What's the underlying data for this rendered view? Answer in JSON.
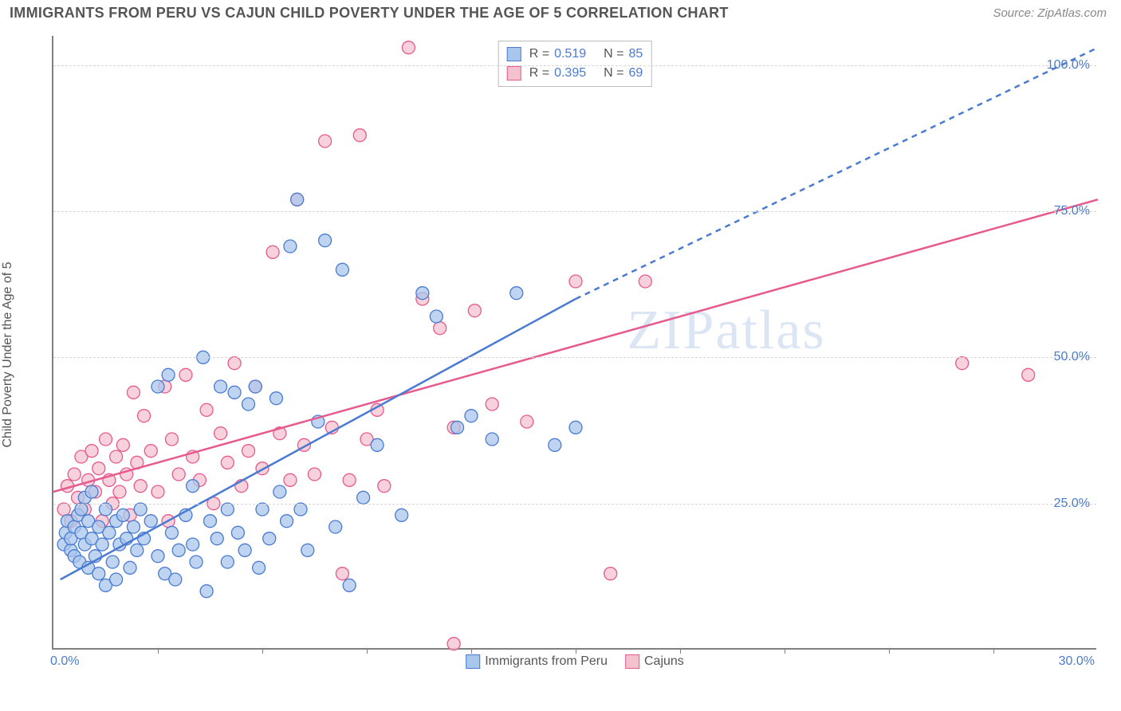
{
  "header": {
    "title": "IMMIGRANTS FROM PERU VS CAJUN CHILD POVERTY UNDER THE AGE OF 5 CORRELATION CHART",
    "source": "Source: ZipAtlas.com"
  },
  "chart": {
    "type": "scatter",
    "ylabel": "Child Poverty Under the Age of 5",
    "watermark": "ZIPatlas",
    "xlim": [
      0,
      30
    ],
    "ylim": [
      0,
      105
    ],
    "y_ticks": [
      25,
      50,
      75,
      100
    ],
    "y_tick_labels": [
      "25.0%",
      "50.0%",
      "75.0%",
      "100.0%"
    ],
    "x_minor_ticks": [
      3,
      6,
      9,
      12,
      15,
      18,
      21,
      24,
      27
    ],
    "x_left_label": "0.0%",
    "x_right_label": "30.0%",
    "background_color": "#ffffff",
    "grid_color": "#d6d6d6",
    "axis_color": "#808080",
    "label_color": "#4a7bd0",
    "series": {
      "blue": {
        "label": "Immigrants from Peru",
        "color_fill": "#a9c6ec",
        "color_stroke": "#4a7bd0",
        "marker_r": 8,
        "marker_opacity": 0.75,
        "R": "0.519",
        "N": "85",
        "trend_solid": {
          "x1": 0.2,
          "y1": 12,
          "x2": 15,
          "y2": 60
        },
        "trend_dash": {
          "x1": 15,
          "y1": 60,
          "x2": 30,
          "y2": 103
        },
        "points": [
          [
            0.3,
            18
          ],
          [
            0.35,
            20
          ],
          [
            0.4,
            22
          ],
          [
            0.5,
            17
          ],
          [
            0.5,
            19
          ],
          [
            0.6,
            21
          ],
          [
            0.6,
            16
          ],
          [
            0.7,
            23
          ],
          [
            0.75,
            15
          ],
          [
            0.8,
            20
          ],
          [
            0.8,
            24
          ],
          [
            0.9,
            18
          ],
          [
            0.9,
            26
          ],
          [
            1.0,
            14
          ],
          [
            1.0,
            22
          ],
          [
            1.1,
            19
          ],
          [
            1.1,
            27
          ],
          [
            1.2,
            16
          ],
          [
            1.3,
            21
          ],
          [
            1.3,
            13
          ],
          [
            1.4,
            18
          ],
          [
            1.5,
            24
          ],
          [
            1.5,
            11
          ],
          [
            1.6,
            20
          ],
          [
            1.7,
            15
          ],
          [
            1.8,
            22
          ],
          [
            1.8,
            12
          ],
          [
            1.9,
            18
          ],
          [
            2.0,
            23
          ],
          [
            2.1,
            19
          ],
          [
            2.2,
            14
          ],
          [
            2.3,
            21
          ],
          [
            2.4,
            17
          ],
          [
            2.5,
            24
          ],
          [
            2.6,
            19
          ],
          [
            2.8,
            22
          ],
          [
            3.0,
            16
          ],
          [
            3.0,
            45
          ],
          [
            3.2,
            13
          ],
          [
            3.3,
            47
          ],
          [
            3.4,
            20
          ],
          [
            3.5,
            12
          ],
          [
            3.6,
            17
          ],
          [
            3.8,
            23
          ],
          [
            4.0,
            28
          ],
          [
            4.0,
            18
          ],
          [
            4.1,
            15
          ],
          [
            4.3,
            50
          ],
          [
            4.4,
            10
          ],
          [
            4.5,
            22
          ],
          [
            4.7,
            19
          ],
          [
            4.8,
            45
          ],
          [
            5.0,
            24
          ],
          [
            5.0,
            15
          ],
          [
            5.2,
            44
          ],
          [
            5.3,
            20
          ],
          [
            5.5,
            17
          ],
          [
            5.6,
            42
          ],
          [
            5.8,
            45
          ],
          [
            5.9,
            14
          ],
          [
            6.0,
            24
          ],
          [
            6.2,
            19
          ],
          [
            6.4,
            43
          ],
          [
            6.5,
            27
          ],
          [
            6.7,
            22
          ],
          [
            6.8,
            69
          ],
          [
            7.0,
            77
          ],
          [
            7.1,
            24
          ],
          [
            7.3,
            17
          ],
          [
            7.6,
            39
          ],
          [
            7.8,
            70
          ],
          [
            8.1,
            21
          ],
          [
            8.3,
            65
          ],
          [
            8.5,
            11
          ],
          [
            8.9,
            26
          ],
          [
            9.3,
            35
          ],
          [
            10.0,
            23
          ],
          [
            10.6,
            61
          ],
          [
            11.0,
            57
          ],
          [
            11.6,
            38
          ],
          [
            12.0,
            40
          ],
          [
            12.6,
            36
          ],
          [
            13.3,
            61
          ],
          [
            14.4,
            35
          ],
          [
            15.0,
            38
          ]
        ]
      },
      "pink": {
        "label": "Cajuns",
        "color_fill": "#f4c2cf",
        "color_stroke": "#e75a8d",
        "marker_r": 8,
        "marker_opacity": 0.75,
        "R": "0.395",
        "N": "69",
        "trend_solid": {
          "x1": 0,
          "y1": 27,
          "x2": 30,
          "y2": 77
        },
        "points": [
          [
            0.3,
            24
          ],
          [
            0.4,
            28
          ],
          [
            0.5,
            22
          ],
          [
            0.6,
            30
          ],
          [
            0.7,
            26
          ],
          [
            0.8,
            33
          ],
          [
            0.9,
            24
          ],
          [
            1.0,
            29
          ],
          [
            1.1,
            34
          ],
          [
            1.2,
            27
          ],
          [
            1.3,
            31
          ],
          [
            1.4,
            22
          ],
          [
            1.5,
            36
          ],
          [
            1.6,
            29
          ],
          [
            1.7,
            25
          ],
          [
            1.8,
            33
          ],
          [
            1.9,
            27
          ],
          [
            2.0,
            35
          ],
          [
            2.1,
            30
          ],
          [
            2.2,
            23
          ],
          [
            2.3,
            44
          ],
          [
            2.4,
            32
          ],
          [
            2.5,
            28
          ],
          [
            2.6,
            40
          ],
          [
            2.8,
            34
          ],
          [
            3.0,
            27
          ],
          [
            3.2,
            45
          ],
          [
            3.3,
            22
          ],
          [
            3.4,
            36
          ],
          [
            3.6,
            30
          ],
          [
            3.8,
            47
          ],
          [
            4.0,
            33
          ],
          [
            4.2,
            29
          ],
          [
            4.4,
            41
          ],
          [
            4.6,
            25
          ],
          [
            4.8,
            37
          ],
          [
            5.0,
            32
          ],
          [
            5.2,
            49
          ],
          [
            5.4,
            28
          ],
          [
            5.6,
            34
          ],
          [
            5.8,
            45
          ],
          [
            6.0,
            31
          ],
          [
            6.3,
            68
          ],
          [
            6.5,
            37
          ],
          [
            6.8,
            29
          ],
          [
            7.0,
            77
          ],
          [
            7.2,
            35
          ],
          [
            7.5,
            30
          ],
          [
            7.8,
            87
          ],
          [
            8.0,
            38
          ],
          [
            8.3,
            13
          ],
          [
            8.5,
            29
          ],
          [
            8.8,
            88
          ],
          [
            9.0,
            36
          ],
          [
            9.3,
            41
          ],
          [
            9.5,
            28
          ],
          [
            10.2,
            103
          ],
          [
            10.6,
            60
          ],
          [
            11.1,
            55
          ],
          [
            11.5,
            38
          ],
          [
            11.5,
            1
          ],
          [
            12.1,
            58
          ],
          [
            12.6,
            42
          ],
          [
            13.6,
            39
          ],
          [
            15.0,
            63
          ],
          [
            16.0,
            13
          ],
          [
            17.0,
            63
          ],
          [
            26.1,
            49
          ],
          [
            28.0,
            47
          ]
        ]
      }
    },
    "legend_top": {
      "rows": [
        {
          "sw_fill": "#a9c6ec",
          "sw_stroke": "#4a7bd0",
          "r_label": "R  =",
          "r_val": "0.519",
          "n_label": "N  =",
          "n_val": "85"
        },
        {
          "sw_fill": "#f4c2cf",
          "sw_stroke": "#e75a8d",
          "r_label": "R  =",
          "r_val": "0.395",
          "n_label": "N  =",
          "n_val": "69"
        }
      ]
    },
    "legend_bottom": [
      {
        "sw_fill": "#a9c6ec",
        "sw_stroke": "#4a7bd0",
        "label": "Immigrants from Peru"
      },
      {
        "sw_fill": "#f4c2cf",
        "sw_stroke": "#e75a8d",
        "label": "Cajuns"
      }
    ]
  }
}
